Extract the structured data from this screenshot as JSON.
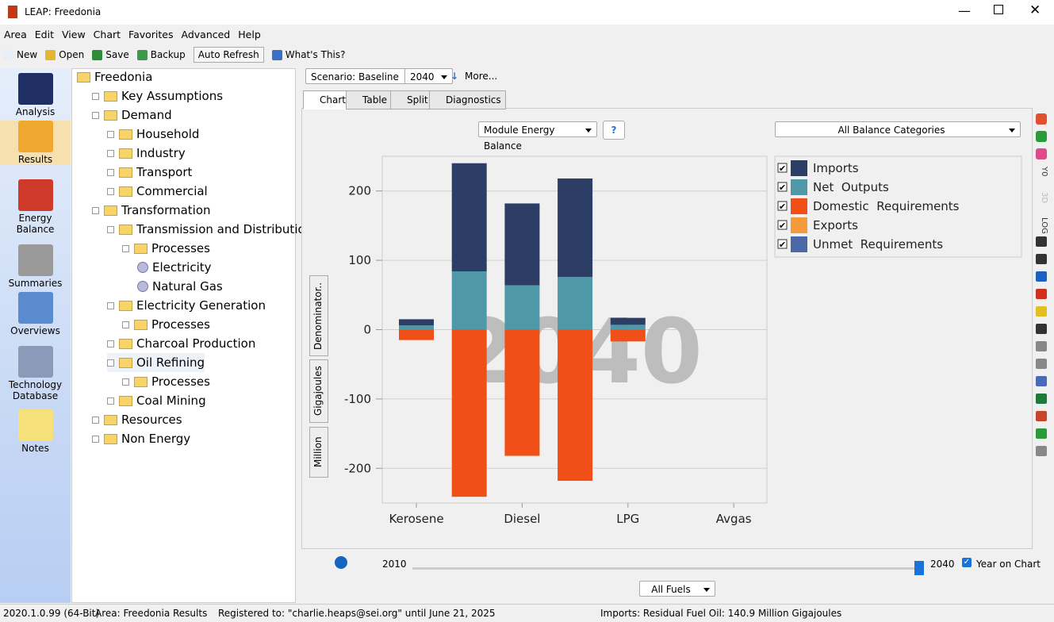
{
  "window": {
    "title": "LEAP: Freedonia"
  },
  "menu": [
    "Area",
    "Edit",
    "View",
    "Chart",
    "Favorites",
    "Advanced",
    "Help"
  ],
  "toolbar": [
    "New",
    "Open",
    "Save",
    "Backup",
    "Auto Refresh",
    "What's This?"
  ],
  "sidebar": [
    "Analysis",
    "Results",
    "Energy Balance",
    "Summaries",
    "Overviews",
    "Technology Database",
    "Notes"
  ],
  "tree": [
    {
      "label": "Freedonia",
      "level": 0
    },
    {
      "label": "Key Assumptions",
      "level": 1
    },
    {
      "label": "Demand",
      "level": 1
    },
    {
      "label": "Household",
      "level": 2
    },
    {
      "label": "Industry",
      "level": 2
    },
    {
      "label": "Transport",
      "level": 2
    },
    {
      "label": "Commercial",
      "level": 2
    },
    {
      "label": "Transformation",
      "level": 1
    },
    {
      "label": "Transmission and Distribution",
      "level": 2
    },
    {
      "label": "Processes",
      "level": 3
    },
    {
      "label": "Electricity",
      "level": 4,
      "leaf": true
    },
    {
      "label": "Natural Gas",
      "level": 4,
      "leaf": true
    },
    {
      "label": "Electricity Generation",
      "level": 2
    },
    {
      "label": "Processes",
      "level": 3
    },
    {
      "label": "Charcoal Production",
      "level": 2
    },
    {
      "label": "Oil Refining",
      "level": 2
    },
    {
      "label": "Processes",
      "level": 3
    },
    {
      "label": "Coal Mining",
      "level": 2
    },
    {
      "label": "Resources",
      "level": 1
    },
    {
      "label": "Non Energy",
      "level": 1
    }
  ],
  "controls": {
    "scenario": "Scenario: Baseline",
    "year": "2040",
    "more": "More...",
    "tabs": [
      "Chart",
      "Table",
      "Split",
      "Diagnostics"
    ],
    "chart_selector": "Module Energy Balance",
    "category_selector": "All Balance Categories",
    "unit_buttons": [
      "Denominator..",
      "Gigajoules",
      "Million"
    ],
    "right_tools": [
      "Y0",
      "3D",
      "LOG"
    ],
    "slider_start": "2010",
    "slider_end": "2040",
    "year_on_chart": "Year on Chart",
    "fuel_selector": "All Fuels"
  },
  "chart_data": {
    "type": "stacked_bar",
    "annotation": "2040",
    "categories": [
      "Kerosene",
      null,
      "Diesel",
      null,
      "LPG",
      null,
      "Avgas"
    ],
    "series": [
      {
        "name": "Imports",
        "color": "#2c3e66",
        "values": [
          9,
          156,
          118,
          142,
          10,
          0,
          0
        ]
      },
      {
        "name": "Net  Outputs",
        "color": "#4f98a8",
        "values": [
          6,
          84,
          64,
          76,
          7,
          0,
          0
        ]
      },
      {
        "name": "Domestic  Requirements",
        "color": "#f04f17",
        "values": [
          -15,
          -241,
          -182,
          -218,
          -17,
          0,
          0
        ]
      },
      {
        "name": "Exports",
        "color": "#f59a3a",
        "values": [
          0,
          0,
          0,
          0,
          0,
          0,
          0
        ]
      },
      {
        "name": "Unmet  Requirements",
        "color": "#4a68a8",
        "values": [
          0,
          0,
          0,
          0,
          0,
          0,
          0
        ]
      }
    ],
    "ylim": [
      -250,
      250
    ],
    "yticks": [
      -200,
      -100,
      0,
      100,
      200
    ],
    "grid": true
  },
  "status": [
    "2020.1.0.99 (64-Bit)",
    "Area: Freedonia",
    "Results",
    "Registered to: \"charlie.heaps@sei.org\" until June 21, 2025",
    "Imports: Residual Fuel Oil: 140.9 Million Gigajoules"
  ]
}
